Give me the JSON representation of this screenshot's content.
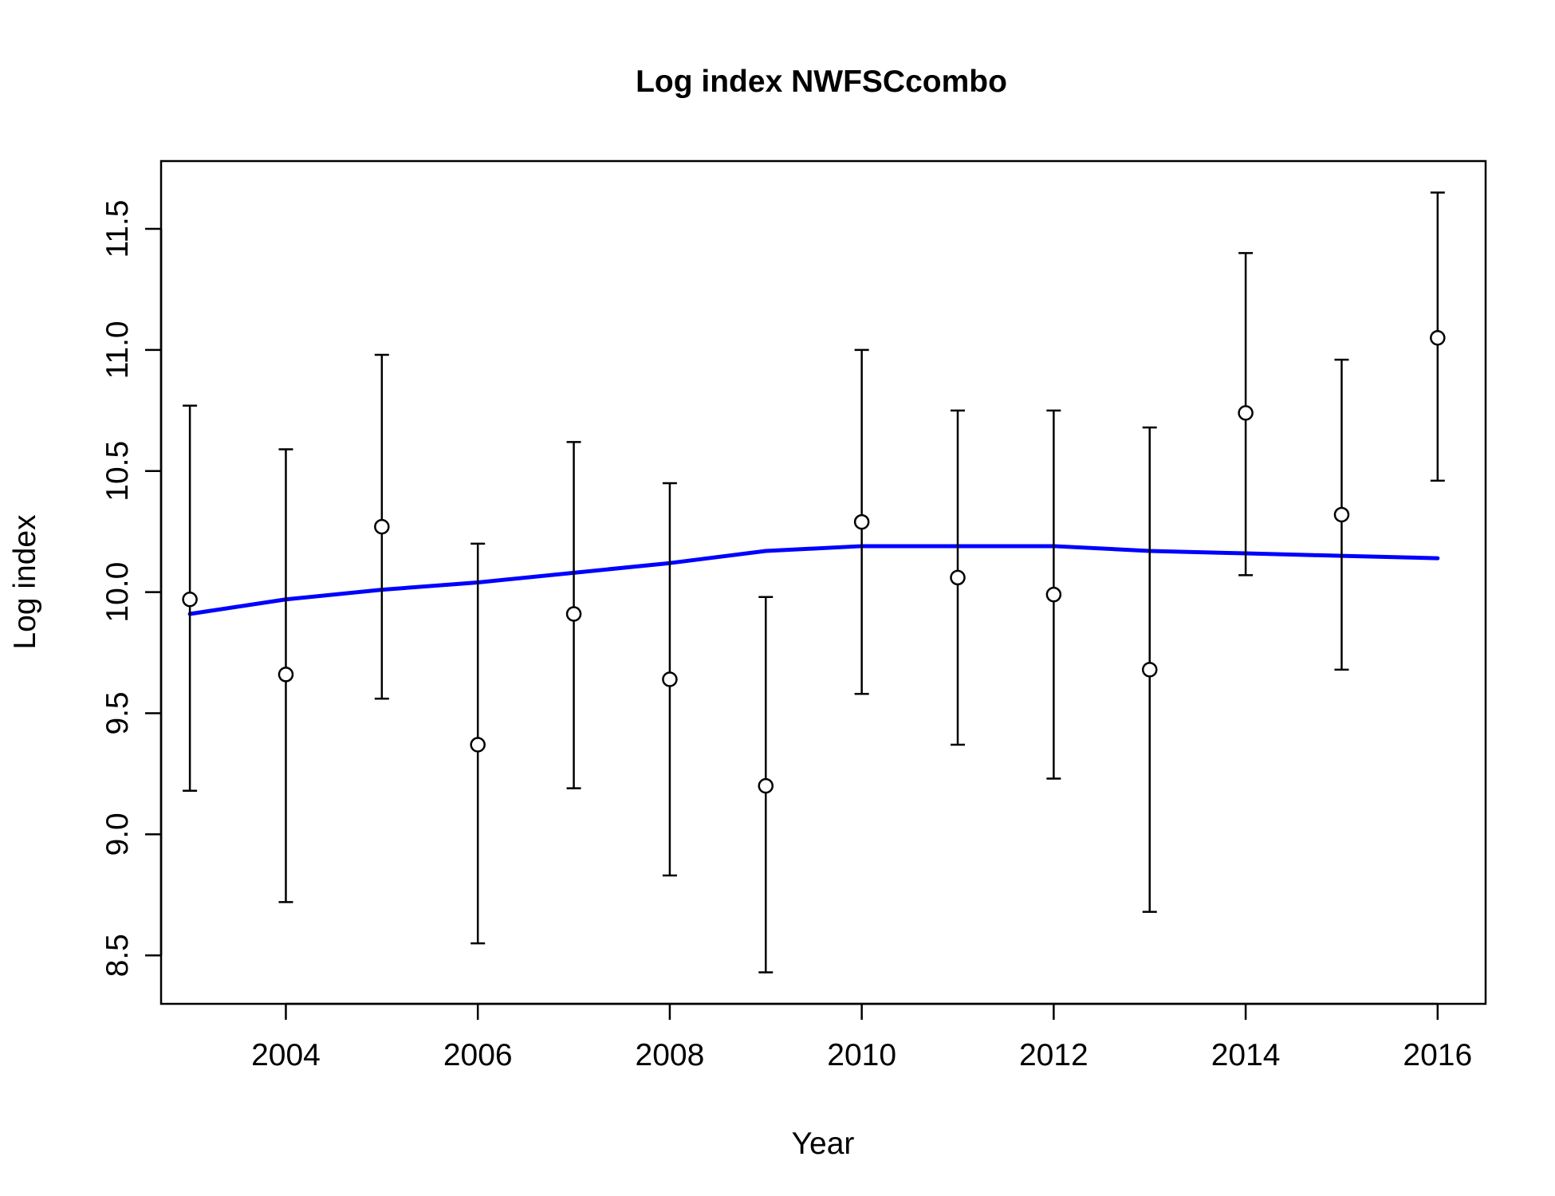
{
  "chart_data": {
    "type": "scatter",
    "title": "Log index NWFSCcombo",
    "xlabel": "Year",
    "ylabel": "Log index",
    "xlim": [
      2002.7,
      2016.5
    ],
    "ylim": [
      8.3,
      11.78
    ],
    "x_ticks": [
      2004,
      2006,
      2008,
      2010,
      2012,
      2014,
      2016
    ],
    "x_tick_labels": [
      "2004",
      "2006",
      "2008",
      "2010",
      "2012",
      "2014",
      "2016"
    ],
    "y_ticks": [
      8.5,
      9.0,
      9.5,
      10.0,
      10.5,
      11.0,
      11.5
    ],
    "y_tick_labels": [
      "8.5",
      "9.0",
      "9.5",
      "10.0",
      "10.5",
      "11.0",
      "11.5"
    ],
    "grid": false,
    "legend": "none",
    "series": [
      {
        "type": "points-with-errorbars",
        "color": "#000000",
        "x": [
          2003,
          2004,
          2005,
          2006,
          2007,
          2008,
          2009,
          2010,
          2011,
          2012,
          2013,
          2014,
          2015,
          2016
        ],
        "y": [
          9.97,
          9.66,
          10.27,
          9.37,
          9.91,
          9.64,
          9.2,
          10.29,
          10.06,
          9.99,
          9.68,
          10.74,
          10.32,
          11.05
        ],
        "lower": [
          9.18,
          8.72,
          9.56,
          8.55,
          9.19,
          8.83,
          8.43,
          9.58,
          9.37,
          9.23,
          8.68,
          10.07,
          9.68,
          10.46
        ],
        "upper": [
          10.77,
          10.59,
          10.98,
          10.2,
          10.62,
          10.45,
          9.98,
          11.0,
          10.75,
          10.75,
          10.68,
          11.4,
          10.96,
          11.65
        ]
      },
      {
        "type": "line",
        "color": "#0000FF",
        "x": [
          2003,
          2004,
          2005,
          2006,
          2007,
          2008,
          2009,
          2010,
          2011,
          2012,
          2013,
          2014,
          2015,
          2016
        ],
        "y": [
          9.91,
          9.97,
          10.01,
          10.04,
          10.08,
          10.12,
          10.17,
          10.19,
          10.19,
          10.19,
          10.17,
          10.16,
          10.15,
          10.14
        ]
      }
    ]
  }
}
